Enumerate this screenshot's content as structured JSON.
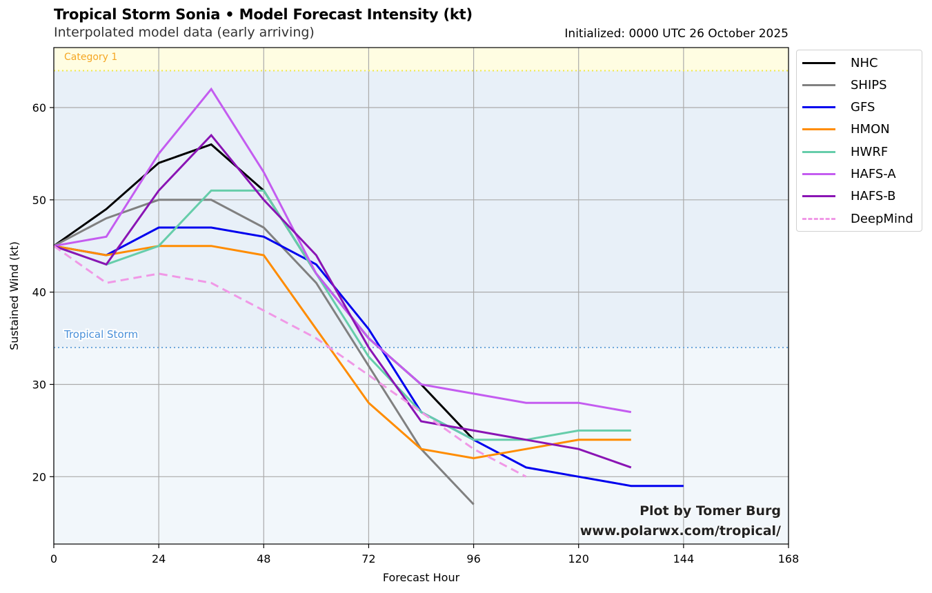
{
  "header": {
    "title": "Tropical Storm Sonia • Model Forecast Intensity (kt)",
    "subtitle": "Interpolated model data (early arriving)",
    "initialized": "Initialized: 0000 UTC 26 October 2025"
  },
  "credit": {
    "line1": "Plot by Tomer Burg",
    "line2": "www.polarwx.com/tropical/"
  },
  "chart_data": {
    "type": "line",
    "title": "Tropical Storm Sonia • Model Forecast Intensity (kt)",
    "subtitle": "Interpolated model data (early arriving)",
    "xlabel": "Forecast Hour",
    "ylabel": "Sustained Wind (kt)",
    "xlim": [
      0,
      168
    ],
    "ylim": [
      12.7,
      66.5
    ],
    "xticks": [
      0,
      24,
      48,
      72,
      96,
      120,
      144,
      168
    ],
    "yticks": [
      20,
      30,
      40,
      50,
      60
    ],
    "grid": true,
    "legend_position": "outside-right-top",
    "thresholds": [
      {
        "name": "Tropical Storm",
        "value": 34,
        "color": "#6fa8dc",
        "label_color": "#4a90d9",
        "band_color": "#e8f0f8"
      },
      {
        "name": "Category 1",
        "value": 64,
        "color": "#f0e84a",
        "label_color": "#f5a623",
        "band_color": "#fffde2"
      }
    ],
    "below_ts_band_color": "#f2f7fb",
    "series": [
      {
        "name": "NHC",
        "color": "#000000",
        "dashed": false,
        "x": [
          0,
          12,
          24,
          36,
          48,
          60,
          72,
          84,
          96
        ],
        "values": [
          45,
          49,
          54,
          56,
          51,
          42,
          35,
          30,
          24
        ]
      },
      {
        "name": "SHIPS",
        "color": "#808080",
        "dashed": false,
        "x": [
          0,
          12,
          24,
          36,
          48,
          60,
          72,
          84,
          96
        ],
        "values": [
          45,
          48,
          50,
          50,
          47,
          41,
          32,
          23,
          17
        ]
      },
      {
        "name": "GFS",
        "color": "#0000ee",
        "dashed": false,
        "x": [
          0,
          12,
          24,
          36,
          48,
          60,
          72,
          84,
          96,
          108,
          120,
          132,
          144
        ],
        "values": [
          45,
          44,
          47,
          47,
          46,
          43,
          36,
          27,
          24,
          21,
          20,
          19,
          19
        ]
      },
      {
        "name": "HMON",
        "color": "#ff8c00",
        "dashed": false,
        "x": [
          0,
          12,
          24,
          36,
          48,
          60,
          72,
          84,
          96,
          108,
          120,
          132
        ],
        "values": [
          45,
          44,
          45,
          45,
          44,
          36,
          28,
          23,
          22,
          23,
          24,
          24
        ]
      },
      {
        "name": "HWRF",
        "color": "#66cdaa",
        "dashed": false,
        "x": [
          0,
          12,
          24,
          36,
          48,
          60,
          72,
          84,
          96,
          108,
          120,
          132
        ],
        "values": [
          45,
          43,
          45,
          51,
          51,
          42,
          33,
          27,
          24,
          24,
          25,
          25
        ]
      },
      {
        "name": "HAFS-A",
        "color": "#c45cf0",
        "dashed": false,
        "x": [
          0,
          12,
          24,
          36,
          48,
          60,
          72,
          84,
          96,
          108,
          120,
          132
        ],
        "values": [
          45,
          46,
          55,
          62,
          53,
          42,
          35,
          30,
          29,
          28,
          28,
          27
        ]
      },
      {
        "name": "HAFS-B",
        "color": "#8a14b4",
        "dashed": false,
        "x": [
          0,
          12,
          24,
          36,
          48,
          60,
          72,
          84,
          96,
          108,
          120,
          132
        ],
        "values": [
          45,
          43,
          51,
          57,
          50,
          44,
          34,
          26,
          25,
          24,
          23,
          21
        ]
      },
      {
        "name": "DeepMind",
        "color": "#f098e6",
        "dashed": true,
        "x": [
          0,
          12,
          24,
          36,
          48,
          60,
          72,
          84,
          96,
          108
        ],
        "values": [
          45,
          41,
          42,
          41,
          38,
          35,
          31,
          27,
          23,
          20
        ]
      }
    ]
  }
}
